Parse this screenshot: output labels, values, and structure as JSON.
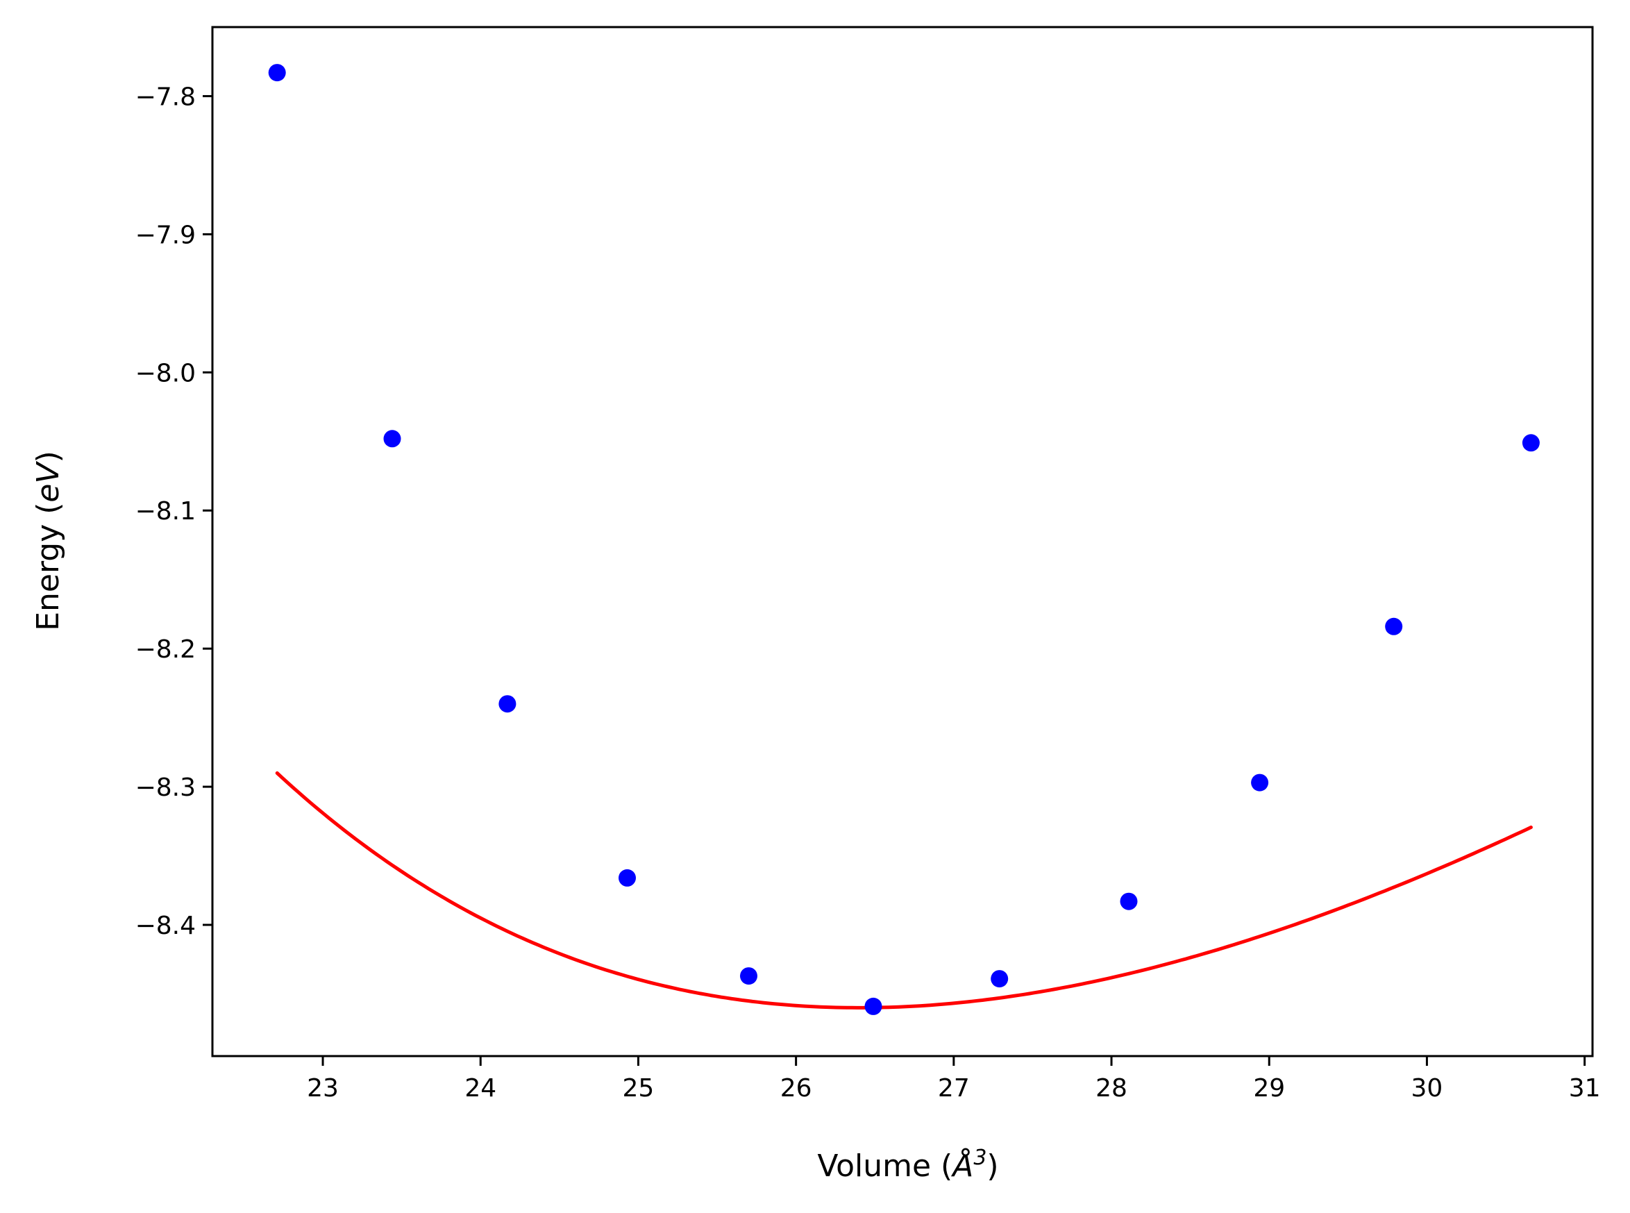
{
  "chart_data": {
    "type": "scatter",
    "title": "",
    "xlabel": {
      "prefix": "Volume (",
      "symbol": "Å",
      "superscript": "3",
      "suffix": ")"
    },
    "ylabel": {
      "prefix": "Energy (",
      "unit": "eV",
      "suffix": ")"
    },
    "xlim": [
      22.3,
      31.05
    ],
    "ylim": [
      -8.495,
      -7.75
    ],
    "x_ticks": [
      23,
      24,
      25,
      26,
      27,
      28,
      29,
      30,
      31
    ],
    "x_tick_labels": [
      "23",
      "24",
      "25",
      "26",
      "27",
      "28",
      "29",
      "30",
      "31"
    ],
    "y_ticks": [
      -7.8,
      -7.9,
      -8.0,
      -8.1,
      -8.2,
      -8.3,
      -8.4
    ],
    "y_tick_labels": [
      "−7.8",
      "−7.9",
      "−8.0",
      "−8.1",
      "−8.2",
      "−8.3",
      "−8.4"
    ],
    "grid": false,
    "legend": "none",
    "series": [
      {
        "kind": "points",
        "color": "#0000ff",
        "x": [
          22.71,
          23.44,
          24.17,
          24.93,
          25.7,
          26.49,
          27.29,
          28.11,
          28.94,
          29.79,
          30.66
        ],
        "y": [
          -7.783,
          -8.048,
          -8.24,
          -8.366,
          -8.437,
          -8.459,
          -8.439,
          -8.383,
          -8.297,
          -8.184,
          -8.051
        ]
      },
      {
        "kind": "fit",
        "color": "#ff0000",
        "fit_model": "Birch-Murnaghan",
        "E0": -8.46,
        "V0": 26.4,
        "B0": 0.5,
        "B0_prime": 4.5,
        "x_range": [
          22.71,
          30.66
        ]
      }
    ]
  }
}
